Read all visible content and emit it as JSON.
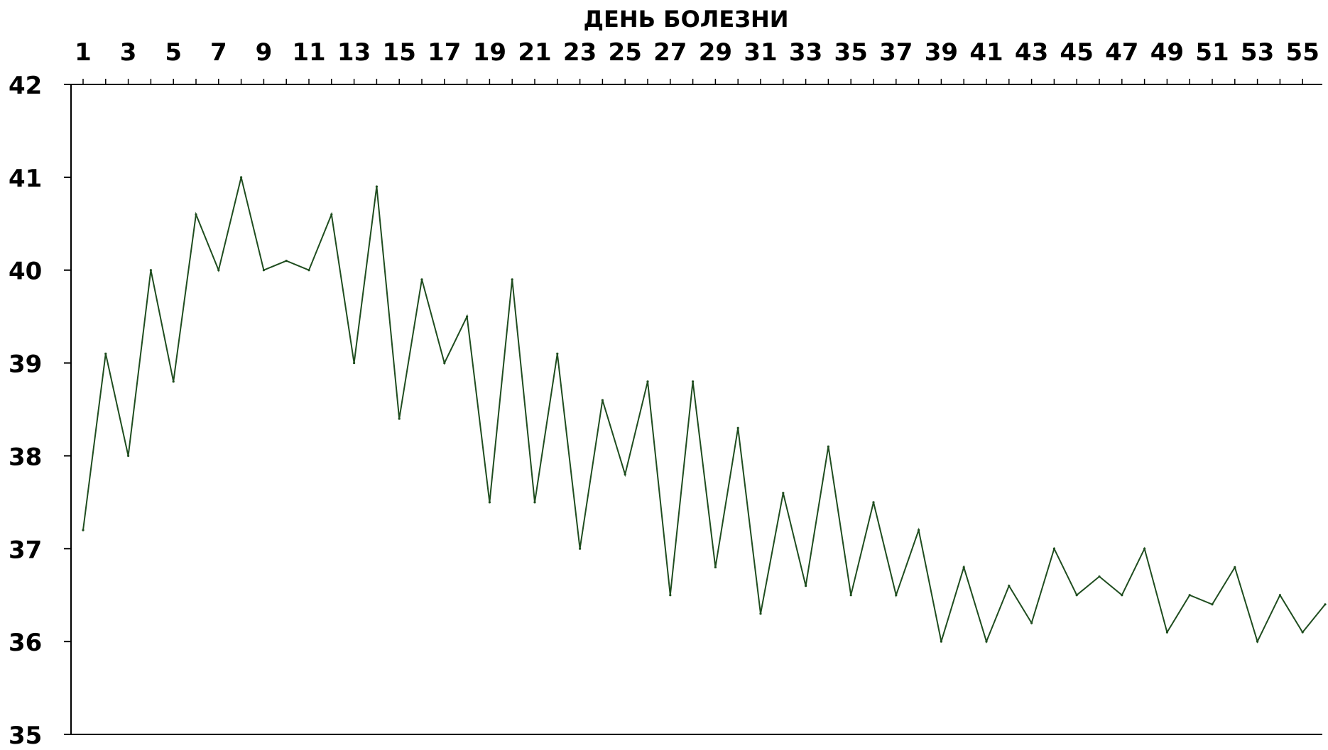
{
  "chart_data": {
    "type": "line",
    "title": "ДЕНЬ БОЛЕЗНИ",
    "xlabel": "",
    "ylabel": "",
    "x_axis_position": "top",
    "xlim": [
      1,
      56
    ],
    "ylim": [
      35,
      42
    ],
    "y_ticks": [
      42,
      41,
      40,
      39,
      38,
      37,
      36,
      35
    ],
    "x_tick_labels": [
      1,
      3,
      5,
      7,
      9,
      11,
      13,
      15,
      17,
      19,
      21,
      23,
      25,
      27,
      29,
      31,
      33,
      35,
      37,
      39,
      41,
      43,
      45,
      47,
      49,
      51,
      53,
      55
    ],
    "grid": false,
    "legend": "none",
    "line_color": "#1f4d1f",
    "series": [
      {
        "x": [
          1,
          2,
          3,
          4,
          5,
          6,
          7,
          8,
          9,
          10,
          11,
          12,
          13,
          14,
          15,
          16,
          17,
          18,
          19,
          20,
          21,
          22,
          23,
          24,
          25,
          26,
          27,
          28,
          29,
          30,
          31,
          32,
          33,
          34,
          35,
          36,
          37,
          38,
          39,
          40,
          41,
          42,
          43,
          44,
          45,
          46,
          47,
          48,
          49,
          50,
          51,
          52,
          53,
          54,
          55,
          56
        ],
        "values": [
          37.2,
          39.1,
          38.0,
          40.0,
          38.8,
          40.6,
          40.0,
          41.0,
          40.0,
          40.1,
          40.0,
          40.6,
          39.0,
          40.9,
          38.4,
          39.9,
          39.0,
          39.5,
          37.5,
          39.9,
          37.5,
          39.1,
          37.0,
          38.6,
          37.8,
          38.8,
          36.5,
          38.8,
          36.8,
          38.3,
          36.3,
          37.6,
          36.6,
          38.1,
          36.5,
          37.5,
          36.5,
          37.2,
          36.0,
          36.8,
          36.0,
          36.6,
          36.2,
          37.0,
          36.5,
          36.7,
          36.5,
          37.0,
          36.1,
          36.5,
          36.4,
          36.8,
          36.0,
          36.5,
          36.1,
          36.4
        ]
      }
    ]
  }
}
